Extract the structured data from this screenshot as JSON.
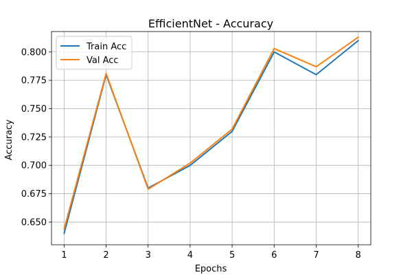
{
  "chart_data": {
    "type": "line",
    "title": "EfficientNet - Accuracy",
    "xlabel": "Epochs",
    "ylabel": "Accuracy",
    "x": [
      1,
      2,
      3,
      4,
      5,
      6,
      7,
      8
    ],
    "xlim": [
      0.7,
      8.3
    ],
    "ylim": [
      0.63,
      0.818
    ],
    "xticks": [
      1,
      2,
      3,
      4,
      5,
      6,
      7,
      8
    ],
    "yticks": [
      0.65,
      0.675,
      0.7,
      0.725,
      0.75,
      0.775,
      0.8
    ],
    "ytick_labels": [
      "0.650",
      "0.675",
      "0.700",
      "0.725",
      "0.750",
      "0.775",
      "0.800"
    ],
    "grid": true,
    "legend_position": "top-left",
    "series": [
      {
        "name": "Train Acc",
        "color": "#1f77b4",
        "values": [
          0.64,
          0.78,
          0.68,
          0.7,
          0.73,
          0.8,
          0.78,
          0.81
        ]
      },
      {
        "name": "Val Acc",
        "color": "#ff7f0e",
        "values": [
          0.644,
          0.781,
          0.679,
          0.702,
          0.732,
          0.803,
          0.787,
          0.813
        ]
      }
    ]
  }
}
